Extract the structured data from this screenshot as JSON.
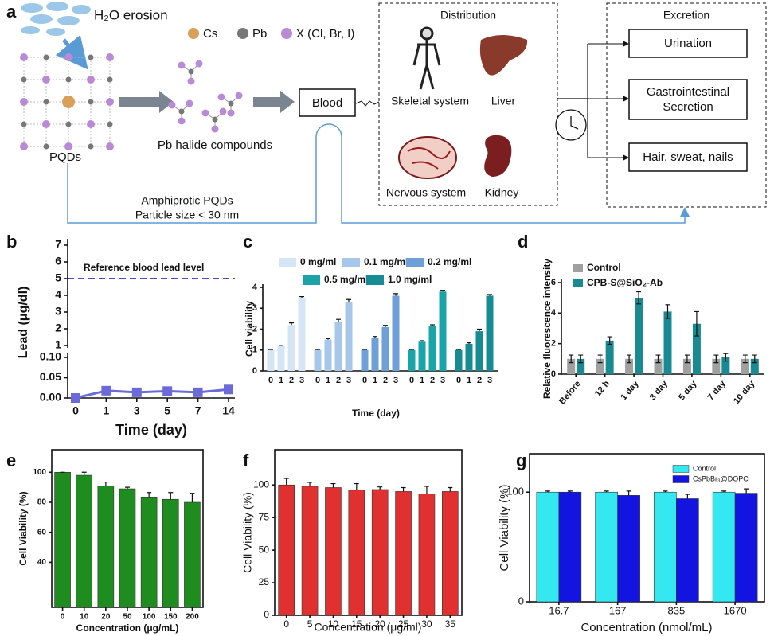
{
  "diagram": {
    "label": "a",
    "h2o": "H₂O erosion",
    "legend": [
      {
        "symbol": "Cs",
        "color": "#d9a05a"
      },
      {
        "symbol": "Pb",
        "color": "#777777"
      },
      {
        "symbol": "X (Cl, Br, I)",
        "color": "#b98ad6"
      }
    ],
    "pqds": "PQDs",
    "pb_halide": "Pb halide compounds",
    "blood": "Blood",
    "amphiprotic": [
      "Amphiprotic PQDs",
      "Particle size < 30 nm"
    ],
    "distribution": {
      "title": "Distribution",
      "organs": [
        "Skeletal system",
        "Liver",
        "Nervous system",
        "Kidney"
      ]
    },
    "excretion": {
      "title": "Excretion",
      "routes": [
        "Urination",
        [
          "Gastrointestinal",
          "Secretion"
        ],
        "Hair, sweat, nails"
      ]
    }
  },
  "chart_data": [
    {
      "type": "line",
      "label": "b",
      "categories": [
        "0",
        "1",
        "3",
        "5",
        "7",
        "14"
      ],
      "values": [
        0,
        0.018,
        0.014,
        0.017,
        0.014,
        0.021
      ],
      "color": "#6a6ad8",
      "ylim": [
        0,
        0.1
      ],
      "yticks": [
        {
          "value": 0,
          "label": "0.00"
        },
        {
          "value": 0.05,
          "label": "0.05"
        },
        {
          "value": 0.1,
          "label": "0.10"
        }
      ],
      "upper_ylim": [
        1,
        7
      ],
      "upper_yticks": [
        1,
        2,
        3,
        4,
        5,
        6,
        7
      ],
      "reference_line": {
        "value": 5,
        "label": "Reference blood lead level",
        "color": "#4a4ad0"
      },
      "xlabel": "Time (day)",
      "ylabel": "Lead (μg/dl)"
    },
    {
      "type": "bar",
      "label": "c",
      "categories": [
        "0",
        "1",
        "2",
        "3"
      ],
      "series": [
        {
          "name": "0 mg/ml",
          "color": "#d4e5f6",
          "values": [
            1.0,
            1.2,
            2.2,
            3.5
          ],
          "errors": [
            0.03,
            0.03,
            0.1,
            0.06
          ]
        },
        {
          "name": "0.1 mg/ml",
          "color": "#a7c7ea",
          "values": [
            1.0,
            1.5,
            2.35,
            3.3
          ],
          "errors": [
            0.03,
            0.05,
            0.12,
            0.12
          ]
        },
        {
          "name": "0.2 mg/ml",
          "color": "#6f9fd8",
          "values": [
            1.0,
            1.6,
            2.1,
            3.6
          ],
          "errors": [
            0.03,
            0.05,
            0.08,
            0.1
          ]
        },
        {
          "name": "0.5 mg/ml",
          "color": "#1ba3aa",
          "values": [
            1.0,
            1.4,
            2.15,
            3.8
          ],
          "errors": [
            0.03,
            0.05,
            0.06,
            0.06
          ]
        },
        {
          "name": "1.0 mg/ml",
          "color": "#168b93",
          "values": [
            1.0,
            1.3,
            1.9,
            3.6
          ],
          "errors": [
            0.03,
            0.05,
            0.1,
            0.06
          ]
        }
      ],
      "ylim": [
        0,
        4
      ],
      "yticks": [
        0,
        1,
        2,
        3,
        4
      ],
      "xlabel": "Time (day)",
      "ylabel": "Cell viability"
    },
    {
      "type": "bar",
      "label": "d",
      "categories": [
        "Before",
        "12 h",
        "1 day",
        "3 day",
        "5 day",
        "7 day",
        "10 day"
      ],
      "series": [
        {
          "name": "Control",
          "color": "#a0a0a0",
          "values": [
            1.0,
            1.0,
            1.0,
            1.0,
            1.0,
            1.0,
            1.0
          ],
          "errors": [
            0.25,
            0.25,
            0.25,
            0.25,
            0.25,
            0.25,
            0.25
          ]
        },
        {
          "name": "CPB-S@SiO₂-Ab",
          "color": "#1a8a92",
          "values": [
            1.0,
            2.2,
            5.0,
            4.1,
            3.3,
            1.1,
            1.0
          ],
          "errors": [
            0.25,
            0.25,
            0.4,
            0.45,
            0.8,
            0.25,
            0.25
          ]
        }
      ],
      "ylim": [
        0,
        6
      ],
      "yticks": [
        0,
        2,
        4,
        6
      ],
      "ylabel": "Relative fluorescence intensity"
    },
    {
      "type": "bar",
      "label": "e",
      "categories": [
        "0",
        "10",
        "20",
        "50",
        "100",
        "150",
        "200"
      ],
      "values": [
        100,
        98,
        91,
        89,
        83,
        82,
        80
      ],
      "errors": [
        0,
        2,
        2.5,
        1,
        3.5,
        4.5,
        6
      ],
      "color": "#1e8c1e",
      "ylim": [
        10,
        115
      ],
      "yticks": [
        40,
        60,
        80,
        100
      ],
      "xlabel": "Concentration (μg/mL)",
      "ylabel": "Cell Viability (%)"
    },
    {
      "type": "bar",
      "label": "f",
      "categories": [
        "0",
        "5",
        "10",
        "15",
        "20",
        "25",
        "30",
        "35"
      ],
      "values": [
        100,
        99,
        98,
        96,
        96.5,
        95,
        93,
        95
      ],
      "errors": [
        5,
        3,
        3,
        5,
        2,
        3,
        6,
        3
      ],
      "color": "#e03030",
      "ylim": [
        0,
        127
      ],
      "yticks": [
        0,
        25,
        50,
        75,
        100
      ],
      "xlabel": "Concentration (μg/ml)",
      "ylabel": "Cell Viability (%)"
    },
    {
      "type": "bar",
      "label": "g",
      "categories": [
        "16.7",
        "167",
        "835",
        "1670"
      ],
      "series": [
        {
          "name": "Control",
          "color": "#33e8f0",
          "values": [
            100,
            100,
            100,
            100
          ],
          "errors": [
            1,
            1,
            1,
            1
          ]
        },
        {
          "name": "CsPbBr₃@DOPC",
          "color": "#1414e0",
          "values": [
            100,
            97,
            94,
            99
          ],
          "errors": [
            1,
            4,
            4,
            4
          ]
        }
      ],
      "ylim": [
        0,
        135
      ],
      "yticks": [
        0,
        100
      ],
      "xlabel": "Concentration (nmol/mL)",
      "ylabel": "Cell Viability (%)"
    }
  ]
}
